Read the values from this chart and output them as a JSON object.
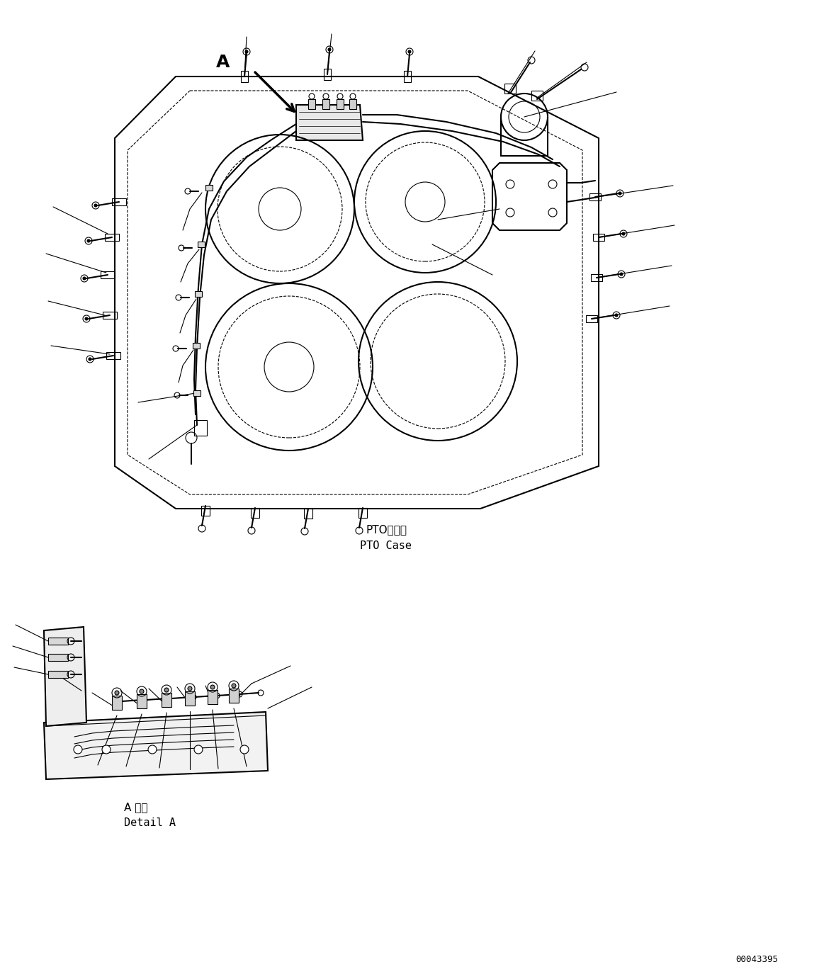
{
  "bg_color": "#ffffff",
  "line_color": "#000000",
  "fig_width": 11.63,
  "fig_height": 13.82,
  "part_number": "00043395",
  "label_pto_case_jp": "PTOケース",
  "label_pto_case_en": "PTO Case",
  "label_detail_a_jp": "A 詳細",
  "label_detail_a_en": "Detail A",
  "label_a": "A"
}
